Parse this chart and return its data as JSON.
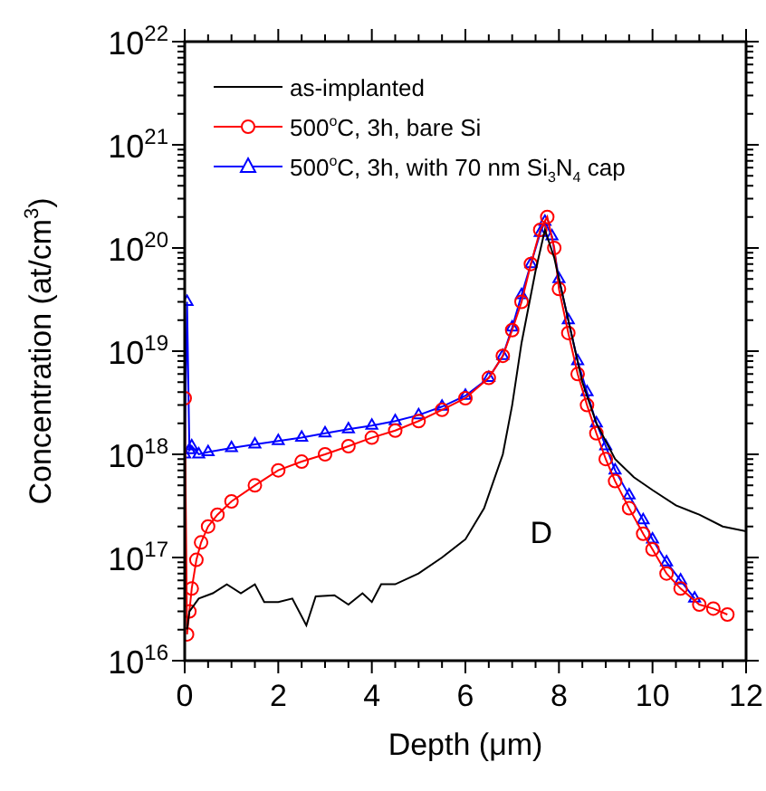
{
  "chart_data": {
    "type": "line",
    "xlabel": "Depth (μm)",
    "ylabel": "Concentration (at/cm$^{3}$)",
    "log": "y",
    "legend": "top",
    "xlim": [
      0,
      12
    ],
    "xticks": [
      0,
      2,
      4,
      6,
      8,
      10,
      12
    ],
    "ylim": [
      1e+16,
      1e+22
    ],
    "yticks": [
      {
        "value": 1e+16,
        "label": "10$^{16}$"
      },
      {
        "value": 1e+17,
        "label": "10$^{17}$"
      },
      {
        "value": 1e+18,
        "label": "10$^{18}$"
      },
      {
        "value": 1e+19,
        "label": "10$^{19}$"
      },
      {
        "value": 1e+20,
        "label": "10$^{20}$"
      },
      {
        "value": 1e+21,
        "label": "10$^{21}$"
      },
      {
        "value": 1e+22,
        "label": "10$^{22}$"
      }
    ],
    "annotations": [
      "D"
    ],
    "series": [
      {
        "name": "as-implanted",
        "color": "#000000",
        "marker": "none",
        "line_style": "solid",
        "x": [
          0.05,
          0.1,
          0.3,
          0.6,
          0.9,
          1.2,
          1.5,
          1.7,
          2.0,
          2.3,
          2.6,
          2.8,
          3.2,
          3.5,
          3.8,
          4.0,
          4.2,
          4.5,
          5.0,
          5.5,
          6.0,
          6.4,
          6.8,
          7.0,
          7.2,
          7.5,
          7.7,
          7.9,
          8.2,
          8.5,
          8.8,
          9.2,
          9.6,
          10.0,
          10.5,
          11.0,
          11.5,
          12.0
        ],
        "values": [
          2e+16,
          3e+16,
          4e+16,
          4.5e+16,
          5.5e+16,
          4.5e+16,
          5.5e+16,
          3.7e+16,
          3.7e+16,
          4e+16,
          2.2e+16,
          4.2e+16,
          4.3e+16,
          3.5e+16,
          4.5e+16,
          3.7e+16,
          5.5e+16,
          5.5e+16,
          7e+16,
          1e+17,
          1.5e+17,
          3e+17,
          1e+18,
          3e+18,
          1.2e+19,
          6e+19,
          1.5e+20,
          8e+19,
          2e+19,
          5e+18,
          2e+18,
          9e+17,
          6e+17,
          4.5e+17,
          3.2e+17,
          2.6e+17,
          2e+17,
          1.8e+17
        ]
      },
      {
        "name": "500$^{o}$C, 3h, bare Si",
        "color": "#ff0000",
        "marker": "circle",
        "line_style": "solid",
        "x": [
          0.0,
          0.05,
          0.1,
          0.15,
          0.25,
          0.35,
          0.5,
          0.7,
          1.0,
          1.5,
          2.0,
          2.5,
          3.0,
          3.5,
          4.0,
          4.5,
          5.0,
          5.5,
          6.0,
          6.5,
          6.8,
          7.0,
          7.2,
          7.4,
          7.6,
          7.75,
          7.9,
          8.0,
          8.2,
          8.4,
          8.6,
          8.8,
          9.0,
          9.2,
          9.5,
          9.8,
          10.0,
          10.3,
          10.6,
          11.0,
          11.3,
          11.6
        ],
        "values": [
          3.5e+18,
          1.8e+16,
          3e+16,
          5e+16,
          9.5e+16,
          1.4e+17,
          2e+17,
          2.6e+17,
          3.5e+17,
          5e+17,
          7e+17,
          8.5e+17,
          1e+18,
          1.2e+18,
          1.45e+18,
          1.7e+18,
          2.1e+18,
          2.7e+18,
          3.5e+18,
          5.5e+18,
          9e+18,
          1.6e+19,
          3e+19,
          7e+19,
          1.5e+20,
          2e+20,
          1e+20,
          4e+19,
          1.5e+19,
          6e+18,
          3e+18,
          1.6e+18,
          9e+17,
          5.5e+17,
          3e+17,
          1.7e+17,
          1.2e+17,
          7e+16,
          5e+16,
          3.5e+16,
          3.2e+16,
          2.8e+16
        ]
      },
      {
        "name": "500$^{o}$C, 3h, with 70 nm Si$_{3}$N$_{4}$ cap",
        "color": "#0000ff",
        "marker": "triangle",
        "line_style": "solid",
        "x": [
          0.0,
          0.05,
          0.1,
          0.15,
          0.3,
          0.5,
          1.0,
          1.5,
          2.0,
          2.5,
          3.0,
          3.5,
          4.0,
          4.5,
          5.0,
          5.5,
          6.0,
          6.5,
          6.8,
          7.0,
          7.2,
          7.4,
          7.6,
          7.7,
          7.85,
          8.0,
          8.2,
          8.4,
          8.6,
          8.8,
          9.0,
          9.2,
          9.5,
          9.8,
          10.0,
          10.3,
          10.6,
          10.9
        ],
        "values": [
          1e+18,
          3e+19,
          1.1e+18,
          1.2e+18,
          1e+18,
          1.05e+18,
          1.15e+18,
          1.25e+18,
          1.35e+18,
          1.45e+18,
          1.6e+18,
          1.75e+18,
          1.9e+18,
          2.1e+18,
          2.4e+18,
          2.9e+18,
          3.7e+18,
          5.5e+18,
          9e+18,
          1.7e+19,
          3.5e+19,
          7e+19,
          1.4e+20,
          1.8e+20,
          1.3e+20,
          5e+19,
          2e+19,
          8e+18,
          4e+18,
          2e+18,
          1.2e+18,
          7e+17,
          4e+17,
          2.3e+17,
          1.5e+17,
          9e+16,
          6e+16,
          4e+16
        ]
      }
    ]
  }
}
